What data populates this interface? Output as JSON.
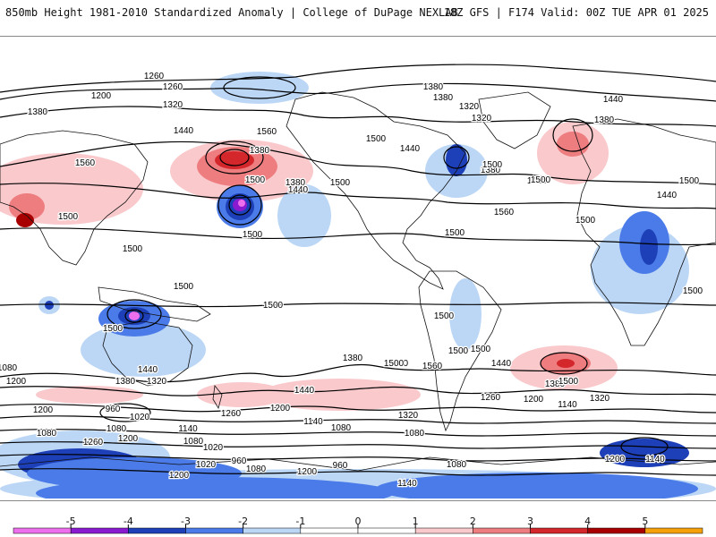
{
  "header": {
    "left_title": "850mb Height 1981-2010 Standardized Anomaly | College of DuPage NEXLAB",
    "right_title": "18Z GFS | F174 Valid: 00Z TUE APR 01 2025"
  },
  "colors": {
    "neg5": "#ee6fee",
    "neg4": "#8a1ad0",
    "neg3": "#1d3fb8",
    "neg2": "#4a7be8",
    "neg1": "#bcd7f6",
    "zero": "#ffffff",
    "pos1": "#f9c9cc",
    "pos2": "#ee7d80",
    "pos3": "#d4272b",
    "pos4": "#a80000",
    "pos5": "#f5a10a",
    "contour": "#000000",
    "coast": "#111111"
  },
  "colorbar": {
    "tick_labels": [
      "-5",
      "-4",
      "-3",
      "-2",
      "-1",
      "0",
      "1",
      "2",
      "3",
      "4",
      "5"
    ]
  },
  "contour_labels": [
    "1260",
    "1260",
    "1200",
    "1320",
    "1380",
    "1380",
    "1320",
    "1380",
    "1380",
    "1320",
    "1380",
    "1440",
    "1380",
    "1440",
    "1440",
    "1560",
    "1500",
    "1500",
    "1560",
    "1500",
    "1380",
    "1440",
    "1500",
    "1440",
    "1500",
    "1500",
    "1560",
    "1440",
    "1500",
    "1500",
    "1500",
    "1500",
    "1500",
    "1500",
    "1500",
    "1500",
    "1500",
    "1500",
    "1500",
    "1440",
    "1380",
    "1320",
    "1380",
    "1500",
    "1560",
    "1500",
    "1440",
    "1500",
    "1380",
    "1320",
    "1500",
    "1440",
    "1260",
    "1200",
    "1140",
    "1200",
    "1320",
    "1260",
    "1200",
    "1140",
    "1080",
    "960",
    "1020",
    "1080",
    "1260",
    "1200",
    "1140",
    "1080",
    "1020",
    "1080",
    "960",
    "1020",
    "1080",
    "960",
    "1140",
    "1200",
    "1200",
    "1080",
    "1140",
    "1200",
    "1080",
    "1200",
    "1080"
  ]
}
